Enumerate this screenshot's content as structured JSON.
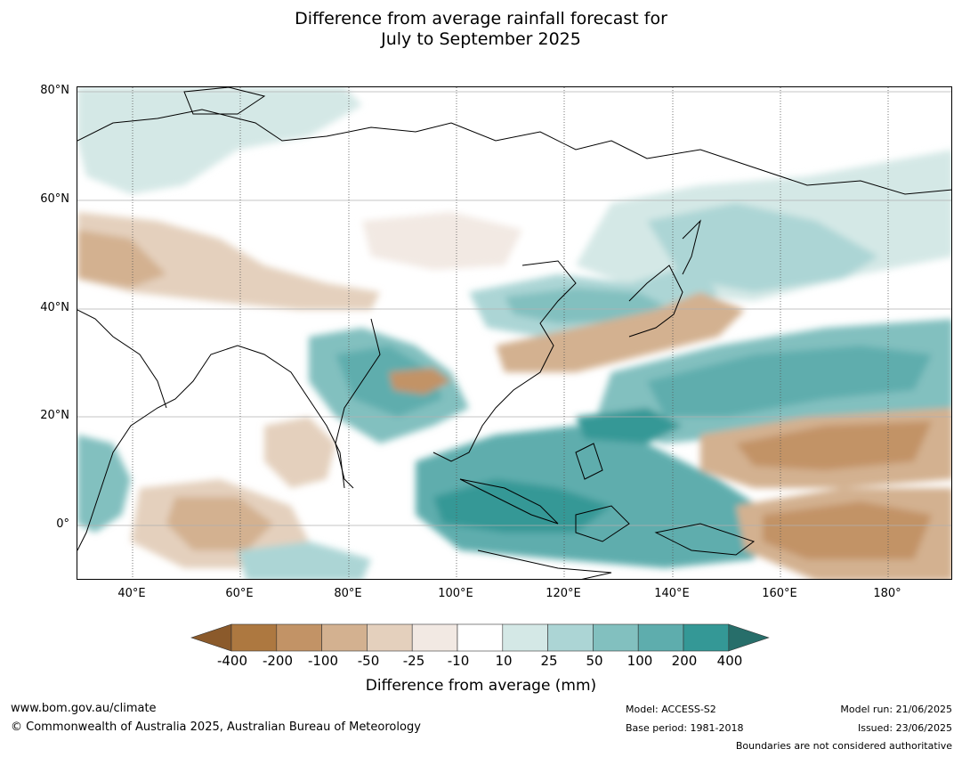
{
  "title": {
    "line1": "Difference from average rainfall forecast for",
    "line2": "July to September 2025"
  },
  "map": {
    "lat_labels": [
      "80°N",
      "60°N",
      "40°N",
      "20°N",
      "0°"
    ],
    "lon_labels": [
      "40°E",
      "60°E",
      "80°E",
      "100°E",
      "120°E",
      "140°E",
      "160°E",
      "180°"
    ]
  },
  "legend": {
    "title": "Difference from average (mm)",
    "tick_labels": [
      "-400",
      "-200",
      "-100",
      "-50",
      "-25",
      "-10",
      "10",
      "25",
      "50",
      "100",
      "200",
      "400"
    ],
    "colors": [
      "#8b5a2b",
      "#ad7840",
      "#c29366",
      "#d3b190",
      "#e4d0bd",
      "#f2e9e3",
      "#ffffff",
      "#d4e8e6",
      "#acd5d5",
      "#82c0bf",
      "#5eadad",
      "#349896",
      "#276e6a"
    ]
  },
  "footer": {
    "website": "www.bom.gov.au/climate",
    "copyright": "© Commonwealth of Australia 2025, Australian Bureau of Meteorology",
    "model": "Model: ACCESS-S2",
    "base_period": "Base period: 1981-2018",
    "model_run": "Model run: 21/06/2025",
    "issued": "Issued: 23/06/2025",
    "boundaries": "Boundaries are not considered authoritative"
  }
}
